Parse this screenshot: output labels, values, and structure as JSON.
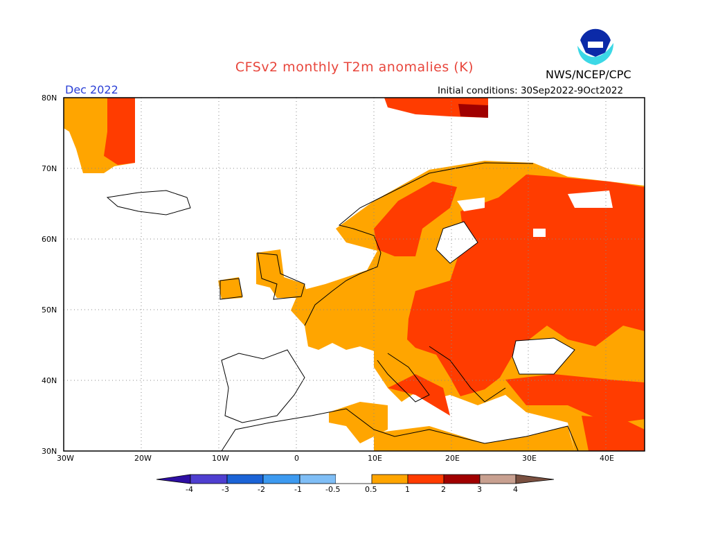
{
  "title": "CFSv2 monthly T2m anomalies (K)",
  "agency": "NWS/NCEP/CPC",
  "logo_text": "NOAA",
  "valid_month": "Dec 2022",
  "initial_conditions": "Initial conditions: 30Sep2022-9Oct2022",
  "map": {
    "lon_range": [
      -30,
      45
    ],
    "lat_range": [
      30,
      80
    ],
    "lat_labels": [
      "80N",
      "70N",
      "60N",
      "50N",
      "40N",
      "30N"
    ],
    "lon_labels": [
      "30W",
      "20W",
      "10W",
      "0",
      "10E",
      "20E",
      "30E",
      "40E"
    ],
    "grid": "dotted"
  },
  "colorbar": {
    "labels": [
      "-4",
      "-3",
      "-2",
      "-1",
      "-0.5",
      "0.5",
      "1",
      "2",
      "3",
      "4"
    ],
    "colors": [
      "#2e0fa3",
      "#4f3fd0",
      "#1b63d6",
      "#3d9af0",
      "#7fbef6",
      "#ffffff",
      "#ffa500",
      "#ff3c00",
      "#a00000",
      "#c8a090",
      "#7a5040"
    ]
  },
  "anomaly_colors": {
    "0.5-1": "#ffa500",
    "1-2": "#ff3c00",
    "2-3": "#a00000"
  }
}
